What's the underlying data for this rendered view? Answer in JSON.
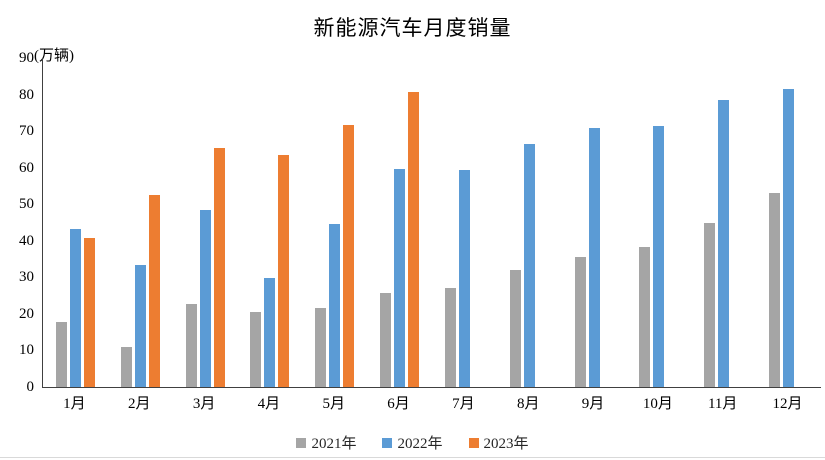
{
  "chart": {
    "title": "新能源汽车月度销量",
    "unit_label": "(万辆)"
  },
  "chart_data": {
    "type": "bar",
    "title": "新能源汽车月度销量",
    "unit_label": "(万辆)",
    "categories": [
      "1月",
      "2月",
      "3月",
      "4月",
      "5月",
      "6月",
      "7月",
      "8月",
      "9月",
      "10月",
      "11月",
      "12月"
    ],
    "series": [
      {
        "name": "2021年",
        "color": "#A5A5A5",
        "values": [
          17.9,
          11.0,
          22.6,
          20.6,
          21.7,
          25.6,
          27.1,
          32.1,
          35.7,
          38.3,
          45.0,
          53.1
        ]
      },
      {
        "name": "2022年",
        "color": "#5B9BD5",
        "values": [
          43.1,
          33.4,
          48.4,
          29.9,
          44.7,
          59.6,
          59.3,
          66.6,
          70.8,
          71.4,
          78.6,
          81.4
        ]
      },
      {
        "name": "2023年",
        "color": "#ED7D31",
        "values": [
          40.8,
          52.5,
          65.3,
          63.6,
          71.7,
          80.6,
          null,
          null,
          null,
          null,
          null,
          null
        ]
      }
    ],
    "xlabel": "",
    "ylabel": "(万辆)",
    "ylim": [
      0,
      90
    ],
    "yticks": [
      0,
      10,
      20,
      30,
      40,
      50,
      60,
      70,
      80,
      90
    ],
    "grid": false,
    "legend_position": "bottom",
    "axis_color": "#404040",
    "text_color": "#000000",
    "background_color": "#ffffff"
  }
}
